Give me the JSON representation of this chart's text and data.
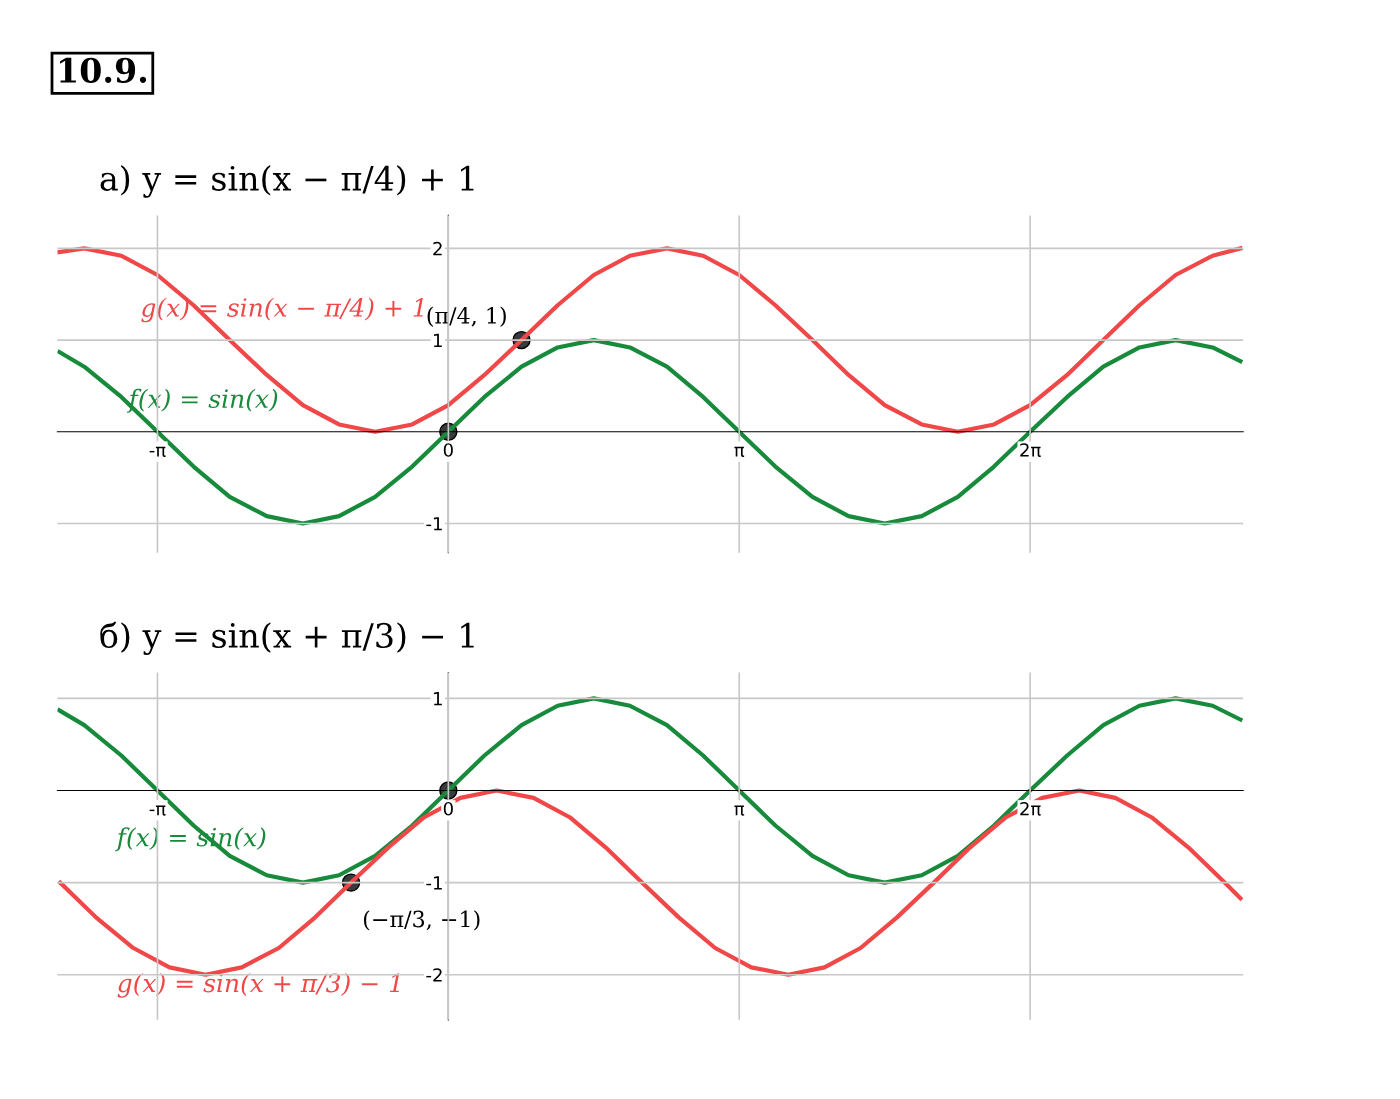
{
  "chart_data": [
    {
      "type": "line",
      "title": "а) y = sin(x − π/4) + 1",
      "annotations": [
        "10.9."
      ],
      "xlim": [
        -4.22,
        8.58
      ],
      "ylim": [
        -1.32,
        2.36
      ],
      "xticks": [
        {
          "value": -3.14,
          "label": "-π"
        },
        0,
        {
          "value": 3.14,
          "label": "π"
        },
        {
          "value": 6.28,
          "label": "2π"
        }
      ],
      "yticks": [
        -1,
        1,
        2
      ],
      "grid": true,
      "legend": false,
      "marker": "none",
      "line_style": "solid",
      "series": [
        {
          "name": "g(x) = sin(x − π/4) + 1",
          "color": "#f04848",
          "x": [
            -4.2,
            -3.93,
            -3.53,
            -3.14,
            -2.75,
            -2.36,
            -1.96,
            -1.57,
            -1.18,
            -0.79,
            -0.39,
            0,
            0.39,
            0.79,
            1.18,
            1.57,
            1.96,
            2.36,
            2.75,
            3.14,
            3.53,
            3.93,
            4.32,
            4.71,
            5.11,
            5.5,
            5.89,
            6.28,
            6.68,
            7.07,
            7.46,
            7.85,
            8.25,
            8.55
          ],
          "values": [
            1.96,
            2,
            1.92,
            1.71,
            1.38,
            1,
            0.62,
            0.29,
            0.08,
            0,
            0.08,
            0.29,
            0.62,
            1,
            1.38,
            1.71,
            1.92,
            2,
            1.92,
            1.71,
            1.38,
            1,
            0.62,
            0.29,
            0.08,
            0,
            0.08,
            0.29,
            0.62,
            1,
            1.38,
            1.71,
            1.92,
            2
          ]
        },
        {
          "name": "f(x) = sin(x)",
          "color": "#178a3c",
          "x": [
            -4.2,
            -3.93,
            -3.53,
            -3.14,
            -2.75,
            -2.36,
            -1.96,
            -1.57,
            -1.18,
            -0.79,
            -0.39,
            0,
            0.39,
            0.79,
            1.18,
            1.57,
            1.96,
            2.36,
            2.75,
            3.14,
            3.53,
            3.93,
            4.32,
            4.71,
            5.11,
            5.5,
            5.89,
            6.28,
            6.68,
            7.07,
            7.46,
            7.85,
            8.25,
            8.55
          ],
          "values": [
            0.87,
            0.71,
            0.38,
            0,
            -0.38,
            -0.71,
            -0.92,
            -1,
            -0.92,
            -0.71,
            -0.38,
            0,
            0.38,
            0.71,
            0.92,
            1,
            0.92,
            0.71,
            0.38,
            0,
            -0.38,
            -0.71,
            -0.92,
            -1,
            -0.92,
            -0.71,
            -0.38,
            0,
            0.38,
            0.71,
            0.92,
            1,
            0.92,
            0.77
          ]
        },
        {
          "type": "scatter",
          "color": "#3a3a3a",
          "marker": "circle",
          "x": [
            0,
            0.79
          ],
          "values": [
            0,
            1
          ],
          "value_labels": [
            null,
            "(π/4, 1)"
          ]
        }
      ]
    },
    {
      "type": "line",
      "title": "б) y = sin(x + π/3) − 1",
      "xlim": [
        -4.22,
        8.58
      ],
      "ylim": [
        -2.49,
        1.28
      ],
      "xticks": [
        {
          "value": -3.14,
          "label": "-π"
        },
        0,
        {
          "value": 3.14,
          "label": "π"
        },
        {
          "value": 6.28,
          "label": "2π"
        }
      ],
      "yticks": [
        -2,
        -1,
        1
      ],
      "grid": true,
      "legend": false,
      "marker": "none",
      "line_style": "solid",
      "series": [
        {
          "name": "f(x) = sin(x)",
          "color": "#178a3c",
          "x": [
            -4.2,
            -3.93,
            -3.53,
            -3.14,
            -2.75,
            -2.36,
            -1.96,
            -1.57,
            -1.18,
            -0.79,
            -0.39,
            0,
            0.39,
            0.79,
            1.18,
            1.57,
            1.96,
            2.36,
            2.75,
            3.14,
            3.53,
            3.93,
            4.32,
            4.71,
            5.11,
            5.5,
            5.89,
            6.28,
            6.68,
            7.07,
            7.46,
            7.85,
            8.25,
            8.55
          ],
          "values": [
            0.87,
            0.71,
            0.38,
            0,
            -0.38,
            -0.71,
            -0.92,
            -1,
            -0.92,
            -0.71,
            -0.38,
            0,
            0.38,
            0.71,
            0.92,
            1,
            0.92,
            0.71,
            0.38,
            0,
            -0.38,
            -0.71,
            -0.92,
            -1,
            -0.92,
            -0.71,
            -0.38,
            0,
            0.38,
            0.71,
            0.92,
            1,
            0.92,
            0.77
          ]
        },
        {
          "name": "g(x) = sin(x + π/3) − 1",
          "color": "#f04848",
          "x": [
            -4.19,
            -3.8,
            -3.4,
            -3.01,
            -2.62,
            -2.23,
            -1.83,
            -1.44,
            -1.05,
            -0.65,
            -0.26,
            0.13,
            0.52,
            0.92,
            1.31,
            1.7,
            2.09,
            2.49,
            2.88,
            3.27,
            3.67,
            4.06,
            4.45,
            4.84,
            5.24,
            5.63,
            6.02,
            6.41,
            6.81,
            7.2,
            7.59,
            7.99,
            8.38,
            8.55
          ],
          "values": [
            -1,
            -1.38,
            -1.71,
            -1.92,
            -2,
            -1.92,
            -1.71,
            -1.38,
            -1,
            -0.62,
            -0.29,
            -0.08,
            0,
            -0.08,
            -0.29,
            -0.62,
            -1,
            -1.38,
            -1.71,
            -1.92,
            -2,
            -1.92,
            -1.71,
            -1.38,
            -1,
            -0.62,
            -0.29,
            -0.08,
            0,
            -0.08,
            -0.29,
            -0.62,
            -1,
            -1.17
          ]
        },
        {
          "type": "scatter",
          "color": "#3a3a3a",
          "marker": "circle",
          "x": [
            -1.05,
            0
          ],
          "values": [
            -1,
            0
          ],
          "value_labels": [
            "(−π/3, −1)",
            null
          ]
        }
      ]
    }
  ]
}
